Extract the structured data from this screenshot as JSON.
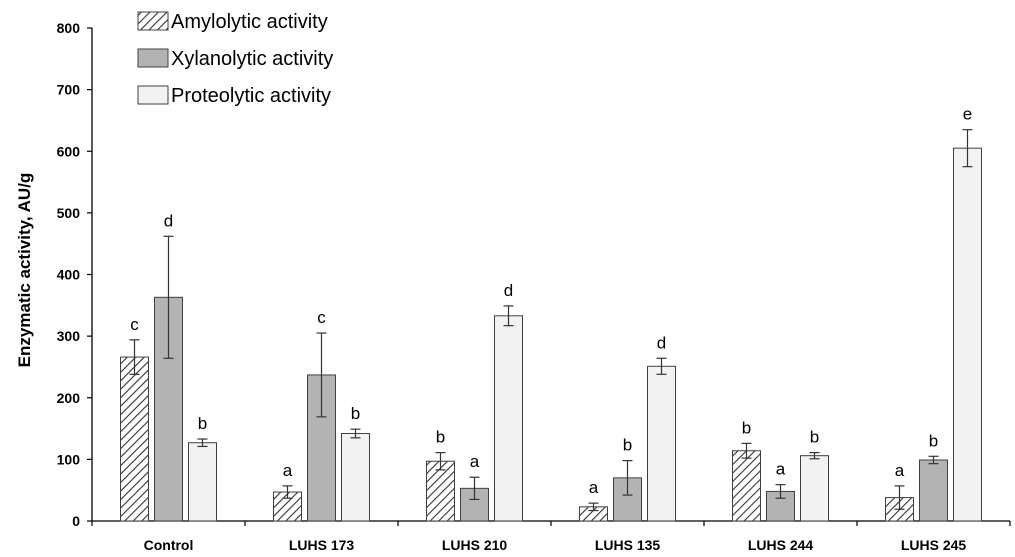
{
  "chart_data": {
    "type": "bar",
    "title": "",
    "xlabel": "",
    "ylabel": "Enzymatic activity, AU/g",
    "ylim": [
      0,
      800
    ],
    "yticks": [
      0,
      100,
      200,
      300,
      400,
      500,
      600,
      700,
      800
    ],
    "grid": false,
    "legend_position": "top-left",
    "categories": [
      "Control",
      "LUHS 173",
      "LUHS 210",
      "LUHS 135",
      "LUHS 244",
      "LUHS 245"
    ],
    "series": [
      {
        "name": "Amylolytic activity",
        "pattern": "hatched",
        "color": "#444444",
        "values": [
          266,
          47,
          97,
          23,
          114,
          38
        ],
        "errors": [
          28,
          10,
          14,
          6,
          12,
          19
        ],
        "letters": [
          "c",
          "a",
          "b",
          "a",
          "b",
          "a"
        ]
      },
      {
        "name": "Xylanolytic activity",
        "pattern": "solid",
        "color": "#b3b3b3",
        "values": [
          363,
          237,
          53,
          70,
          48,
          99
        ],
        "errors": [
          99,
          68,
          18,
          28,
          11,
          6
        ],
        "letters": [
          "d",
          "c",
          "a",
          "b",
          "a",
          "b"
        ]
      },
      {
        "name": "Proteolytic activity",
        "pattern": "solid",
        "color": "#f2f2f2",
        "values": [
          127,
          142,
          333,
          251,
          106,
          605
        ],
        "errors": [
          6,
          7,
          16,
          13,
          5,
          30
        ],
        "letters": [
          "b",
          "b",
          "d",
          "d",
          "b",
          "e"
        ]
      }
    ]
  }
}
